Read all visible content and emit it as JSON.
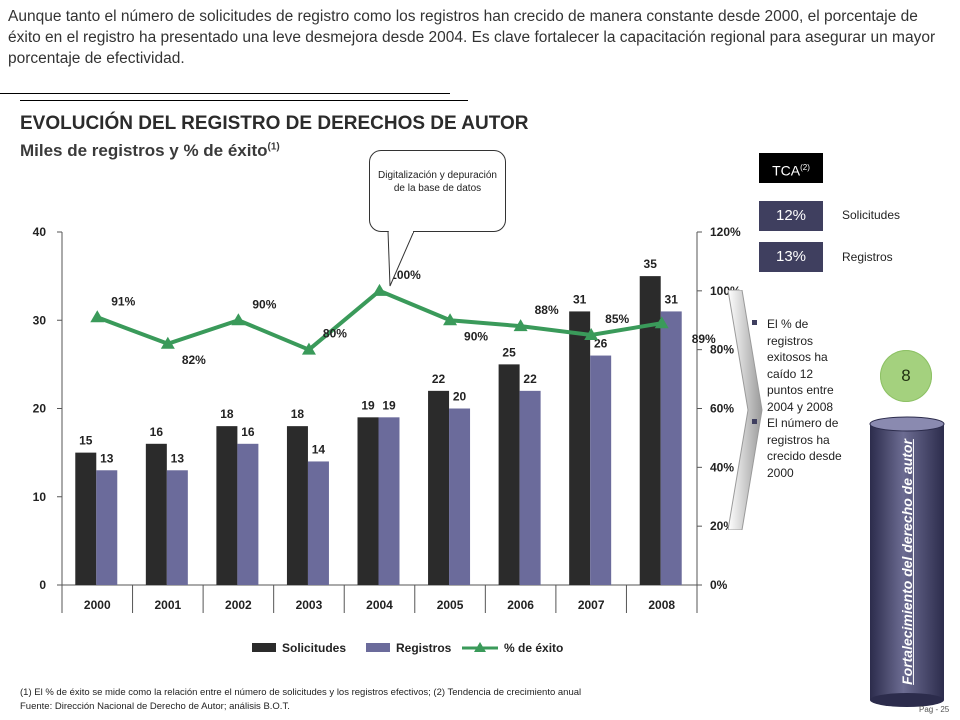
{
  "intro_text": "Aunque tanto el número de solicitudes de registro como los registros han crecido de manera constante desde 2000, el porcentaje de éxito en el registro ha presentado una leve desmejora desde 2004. Es clave fortalecer la capacitación regional para asegurar un mayor porcentaje de efectividad.",
  "title": "EVOLUCIÓN DEL REGISTRO DE DERECHOS DE AUTOR",
  "subtitle": "Miles de registros y % de éxito",
  "subtitle_note": "(1)",
  "callout": "Digitalización y depuración de la base de datos",
  "tca": {
    "header": "TCA",
    "header_note": "(2)",
    "rows": [
      {
        "value": "12%",
        "label": "Solicitudes"
      },
      {
        "value": "13%",
        "label": "Registros"
      }
    ]
  },
  "bullets": [
    "El % de registros exitosos ha caído 12 puntos entre 2004 y 2008",
    "El número de registros ha crecido desde 2000"
  ],
  "badge_number": "8",
  "cylinder_label": "Fortalecimiento del derecho de autor",
  "footnote": "(1) El % de éxito se mide como la relación entre el número de solicitudes y los registros efectivos; (2) Tendencia de crecimiento anual",
  "source": "Fuente: Dirección Nacional de Derecho de Autor; análisis B.O.T.",
  "page_label": "Pag - 25",
  "colors": {
    "solicitudes": "#2b2b2b",
    "registros": "#6b6b9b",
    "exito": "#3a9a5a"
  },
  "chart_data": {
    "type": "bar",
    "categories": [
      "2000",
      "2001",
      "2002",
      "2003",
      "2004",
      "2005",
      "2006",
      "2007",
      "2008"
    ],
    "series": [
      {
        "name": "Solicitudes",
        "type": "bar",
        "axis": "left",
        "values": [
          15,
          16,
          18,
          18,
          19,
          22,
          25,
          31,
          35
        ]
      },
      {
        "name": "Registros",
        "type": "bar",
        "axis": "left",
        "values": [
          13,
          13,
          16,
          14,
          19,
          20,
          22,
          26,
          31
        ]
      },
      {
        "name": "% de éxito",
        "type": "line",
        "axis": "right",
        "values": [
          91,
          82,
          90,
          80,
          100,
          90,
          88,
          85,
          89
        ]
      }
    ],
    "y_left": {
      "min": 0,
      "max": 40,
      "ticks": [
        "0",
        "10",
        "20",
        "30",
        "40"
      ]
    },
    "y_right": {
      "min": 0,
      "max": 120,
      "ticks": [
        "0%",
        "20%",
        "40%",
        "60%",
        "80%",
        "100%",
        "120%"
      ]
    },
    "legend_position": "bottom",
    "grid": false
  }
}
